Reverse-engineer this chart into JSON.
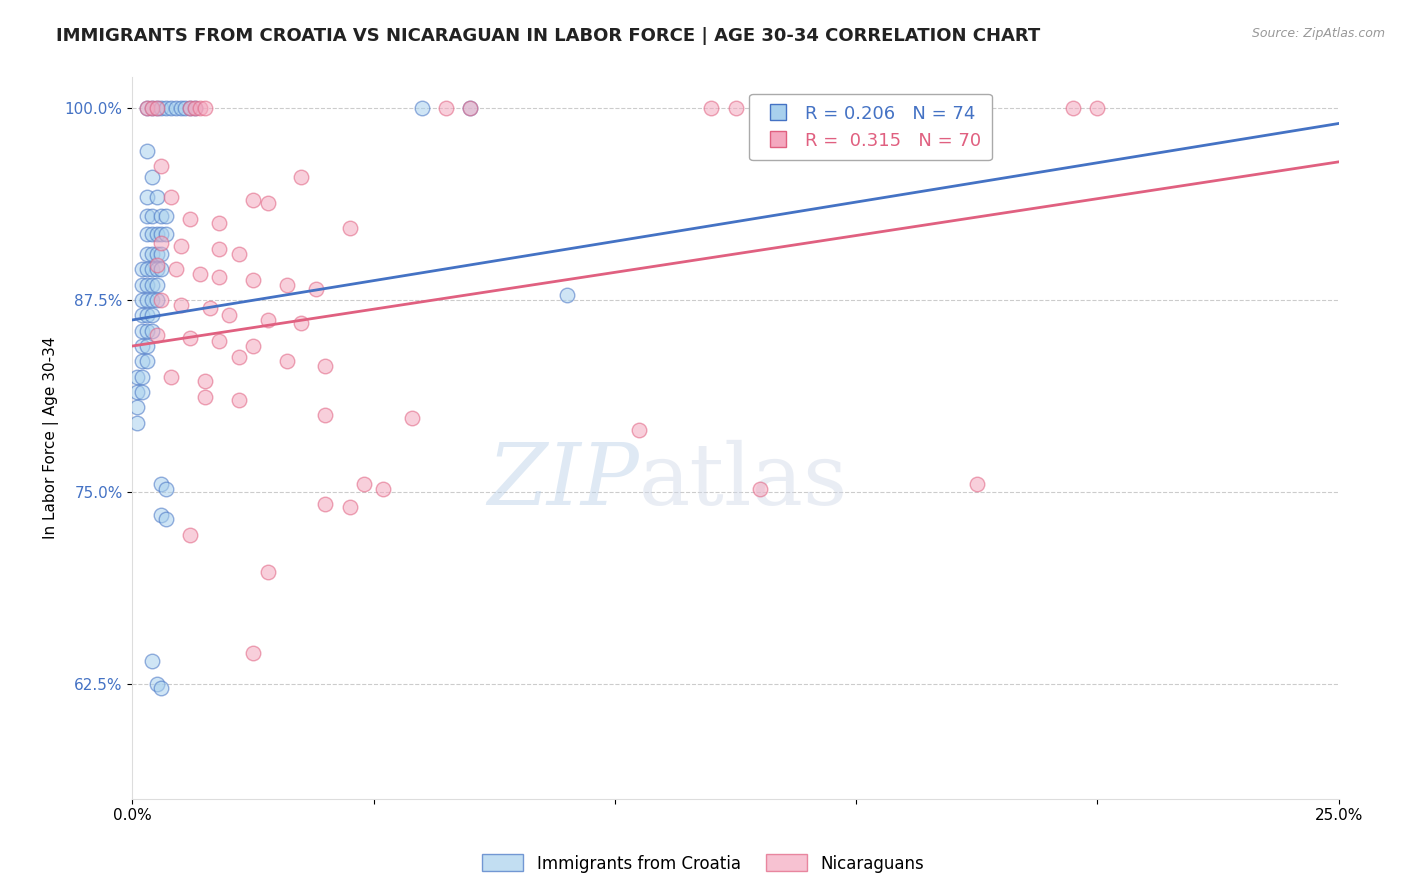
{
  "title": "IMMIGRANTS FROM CROATIA VS NICARAGUAN IN LABOR FORCE | AGE 30-34 CORRELATION CHART",
  "source": "Source: ZipAtlas.com",
  "ylabel": "In Labor Force | Age 30-34",
  "xlim": [
    0.0,
    0.25
  ],
  "ylim": [
    0.55,
    1.02
  ],
  "yticks": [
    0.625,
    0.75,
    0.875,
    1.0
  ],
  "ytick_labels": [
    "62.5%",
    "75.0%",
    "87.5%",
    "100.0%"
  ],
  "xticks": [
    0.0,
    0.05,
    0.1,
    0.15,
    0.2,
    0.25
  ],
  "xtick_labels": [
    "0.0%",
    "",
    "",
    "",
    "",
    "25.0%"
  ],
  "legend_labels": [
    "Immigrants from Croatia",
    "Nicaraguans"
  ],
  "r_croatia": 0.206,
  "n_croatia": 74,
  "r_nicaraguan": 0.315,
  "n_nicaraguan": 70,
  "blue_color": "#a8d0ed",
  "pink_color": "#f4a8bf",
  "blue_line_color": "#4472c4",
  "pink_line_color": "#e06080",
  "blue_line": [
    [
      0.0,
      0.862
    ],
    [
      0.25,
      0.99
    ]
  ],
  "pink_line": [
    [
      0.0,
      0.845
    ],
    [
      0.25,
      0.965
    ]
  ],
  "blue_scatter": [
    [
      0.003,
      1.0
    ],
    [
      0.004,
      1.0
    ],
    [
      0.005,
      1.0
    ],
    [
      0.006,
      1.0
    ],
    [
      0.007,
      1.0
    ],
    [
      0.008,
      1.0
    ],
    [
      0.009,
      1.0
    ],
    [
      0.01,
      1.0
    ],
    [
      0.011,
      1.0
    ],
    [
      0.012,
      1.0
    ],
    [
      0.013,
      1.0
    ],
    [
      0.06,
      1.0
    ],
    [
      0.07,
      1.0
    ],
    [
      0.003,
      0.972
    ],
    [
      0.004,
      0.955
    ],
    [
      0.003,
      0.942
    ],
    [
      0.005,
      0.942
    ],
    [
      0.003,
      0.93
    ],
    [
      0.004,
      0.93
    ],
    [
      0.006,
      0.93
    ],
    [
      0.007,
      0.93
    ],
    [
      0.003,
      0.918
    ],
    [
      0.004,
      0.918
    ],
    [
      0.005,
      0.918
    ],
    [
      0.006,
      0.918
    ],
    [
      0.007,
      0.918
    ],
    [
      0.003,
      0.905
    ],
    [
      0.004,
      0.905
    ],
    [
      0.005,
      0.905
    ],
    [
      0.006,
      0.905
    ],
    [
      0.002,
      0.895
    ],
    [
      0.003,
      0.895
    ],
    [
      0.004,
      0.895
    ],
    [
      0.005,
      0.895
    ],
    [
      0.006,
      0.895
    ],
    [
      0.002,
      0.885
    ],
    [
      0.003,
      0.885
    ],
    [
      0.004,
      0.885
    ],
    [
      0.005,
      0.885
    ],
    [
      0.002,
      0.875
    ],
    [
      0.003,
      0.875
    ],
    [
      0.004,
      0.875
    ],
    [
      0.005,
      0.875
    ],
    [
      0.002,
      0.865
    ],
    [
      0.003,
      0.865
    ],
    [
      0.004,
      0.865
    ],
    [
      0.002,
      0.855
    ],
    [
      0.003,
      0.855
    ],
    [
      0.004,
      0.855
    ],
    [
      0.002,
      0.845
    ],
    [
      0.003,
      0.845
    ],
    [
      0.002,
      0.835
    ],
    [
      0.003,
      0.835
    ],
    [
      0.001,
      0.825
    ],
    [
      0.002,
      0.825
    ],
    [
      0.001,
      0.815
    ],
    [
      0.002,
      0.815
    ],
    [
      0.001,
      0.805
    ],
    [
      0.001,
      0.795
    ],
    [
      0.09,
      0.878
    ],
    [
      0.006,
      0.755
    ],
    [
      0.007,
      0.752
    ],
    [
      0.006,
      0.735
    ],
    [
      0.007,
      0.732
    ],
    [
      0.004,
      0.64
    ],
    [
      0.005,
      0.625
    ],
    [
      0.006,
      0.622
    ]
  ],
  "pink_scatter": [
    [
      0.003,
      1.0
    ],
    [
      0.004,
      1.0
    ],
    [
      0.005,
      1.0
    ],
    [
      0.012,
      1.0
    ],
    [
      0.013,
      1.0
    ],
    [
      0.014,
      1.0
    ],
    [
      0.015,
      1.0
    ],
    [
      0.065,
      1.0
    ],
    [
      0.07,
      1.0
    ],
    [
      0.12,
      1.0
    ],
    [
      0.125,
      1.0
    ],
    [
      0.13,
      1.0
    ],
    [
      0.165,
      1.0
    ],
    [
      0.195,
      1.0
    ],
    [
      0.2,
      1.0
    ],
    [
      0.006,
      0.962
    ],
    [
      0.035,
      0.955
    ],
    [
      0.008,
      0.942
    ],
    [
      0.025,
      0.94
    ],
    [
      0.028,
      0.938
    ],
    [
      0.012,
      0.928
    ],
    [
      0.018,
      0.925
    ],
    [
      0.045,
      0.922
    ],
    [
      0.006,
      0.912
    ],
    [
      0.01,
      0.91
    ],
    [
      0.018,
      0.908
    ],
    [
      0.022,
      0.905
    ],
    [
      0.005,
      0.898
    ],
    [
      0.009,
      0.895
    ],
    [
      0.014,
      0.892
    ],
    [
      0.018,
      0.89
    ],
    [
      0.025,
      0.888
    ],
    [
      0.032,
      0.885
    ],
    [
      0.038,
      0.882
    ],
    [
      0.006,
      0.875
    ],
    [
      0.01,
      0.872
    ],
    [
      0.016,
      0.87
    ],
    [
      0.02,
      0.865
    ],
    [
      0.028,
      0.862
    ],
    [
      0.035,
      0.86
    ],
    [
      0.005,
      0.852
    ],
    [
      0.012,
      0.85
    ],
    [
      0.018,
      0.848
    ],
    [
      0.025,
      0.845
    ],
    [
      0.022,
      0.838
    ],
    [
      0.032,
      0.835
    ],
    [
      0.04,
      0.832
    ],
    [
      0.008,
      0.825
    ],
    [
      0.015,
      0.822
    ],
    [
      0.015,
      0.812
    ],
    [
      0.022,
      0.81
    ],
    [
      0.04,
      0.8
    ],
    [
      0.058,
      0.798
    ],
    [
      0.105,
      0.79
    ],
    [
      0.048,
      0.755
    ],
    [
      0.052,
      0.752
    ],
    [
      0.13,
      0.752
    ],
    [
      0.04,
      0.742
    ],
    [
      0.045,
      0.74
    ],
    [
      0.012,
      0.722
    ],
    [
      0.028,
      0.698
    ],
    [
      0.025,
      0.645
    ],
    [
      0.175,
      0.755
    ]
  ],
  "watermark_zip": "ZIP",
  "watermark_atlas": "atlas",
  "background_color": "#ffffff",
  "grid_color": "#cccccc",
  "title_fontsize": 13,
  "axis_label_fontsize": 11,
  "tick_fontsize": 11,
  "legend_fontsize": 13
}
